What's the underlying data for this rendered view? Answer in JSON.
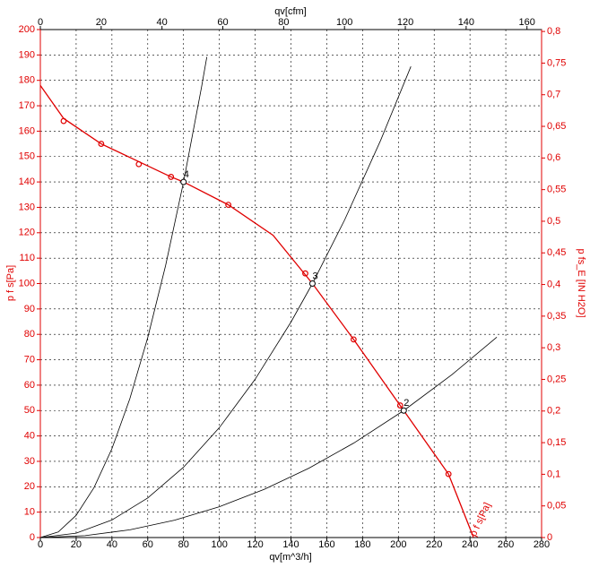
{
  "chart_data": {
    "type": "line",
    "x_label": "qv[m^3/h]",
    "x2_label": "qv[cfm]",
    "y_label": "p f s[Pa]",
    "y2_label": "p fs_E [IN H2O]",
    "xlim": [
      0,
      280
    ],
    "xticks": [
      0,
      20,
      40,
      60,
      80,
      100,
      120,
      140,
      160,
      180,
      200,
      220,
      240,
      260,
      280
    ],
    "x2lim": [
      0,
      164.8
    ],
    "x2ticks": [
      0,
      20,
      40,
      60,
      80,
      100,
      120,
      140,
      160
    ],
    "ylim": [
      0,
      200
    ],
    "yticks": [
      0,
      10,
      20,
      30,
      40,
      50,
      60,
      70,
      80,
      90,
      100,
      110,
      120,
      130,
      140,
      150,
      160,
      170,
      180,
      190,
      200
    ],
    "y2lim": [
      0,
      0.803
    ],
    "y2ticks": [
      0,
      {
        "value": 0.05,
        "label": "0,05"
      },
      {
        "value": 0.1,
        "label": "0,1"
      },
      {
        "value": 0.15,
        "label": "0,15"
      },
      {
        "value": 0.2,
        "label": "0,2"
      },
      {
        "value": 0.25,
        "label": "0,25"
      },
      {
        "value": 0.3,
        "label": "0,3"
      },
      {
        "value": 0.35,
        "label": "0,35"
      },
      {
        "value": 0.4,
        "label": "0,4"
      },
      {
        "value": 0.45,
        "label": "0,45"
      },
      {
        "value": 0.5,
        "label": "0,5"
      },
      {
        "value": 0.55,
        "label": "0,55"
      },
      {
        "value": 0.6,
        "label": "0,6"
      },
      {
        "value": 0.65,
        "label": "0,65"
      },
      {
        "value": 0.7,
        "label": "0,7"
      },
      {
        "value": 0.75,
        "label": "0,75"
      },
      {
        "value": 0.8,
        "label": "0,8"
      }
    ],
    "grid": true,
    "series": [
      {
        "name": "p f s[Pa]",
        "color": "#e00000",
        "x": [
          0,
          13,
          34,
          55,
          73,
          80,
          105,
          130,
          152,
          175,
          203,
          228,
          242
        ],
        "values": [
          178,
          165,
          155,
          148,
          142,
          140,
          131,
          119,
          100,
          78,
          50,
          25,
          0
        ],
        "marker_x": [
          13,
          34,
          55,
          73,
          105,
          148,
          175,
          201,
          228
        ],
        "marker_values": [
          164,
          155,
          147,
          142,
          131,
          104,
          78,
          52,
          25
        ]
      },
      {
        "color": "#000000",
        "x": [
          0,
          10,
          20,
          30,
          40,
          50,
          60,
          70,
          80,
          90,
          93
        ],
        "values": [
          0,
          2.19,
          8.75,
          19.69,
          35,
          54.69,
          78.75,
          107.19,
          140,
          177.19,
          189.2
        ]
      },
      {
        "color": "#000000",
        "x": [
          0,
          20,
          40,
          60,
          80,
          100,
          120,
          140,
          152,
          170,
          190,
          207
        ],
        "values": [
          0,
          1.73,
          6.93,
          15.58,
          27.7,
          43.28,
          62.33,
          84.83,
          100,
          125.09,
          156.25,
          185.47
        ]
      },
      {
        "color": "#000000",
        "x": [
          0,
          25,
          50,
          75,
          100,
          125,
          150,
          175,
          203,
          230,
          255
        ],
        "values": [
          0,
          0.76,
          3.03,
          6.82,
          12.13,
          18.96,
          27.3,
          37.16,
          50,
          64.18,
          78.9
        ]
      }
    ],
    "operating_points": {
      "x": [
        80,
        152,
        203
      ],
      "values": [
        140,
        100,
        50
      ],
      "labels": [
        "4",
        "3",
        "2"
      ]
    }
  }
}
